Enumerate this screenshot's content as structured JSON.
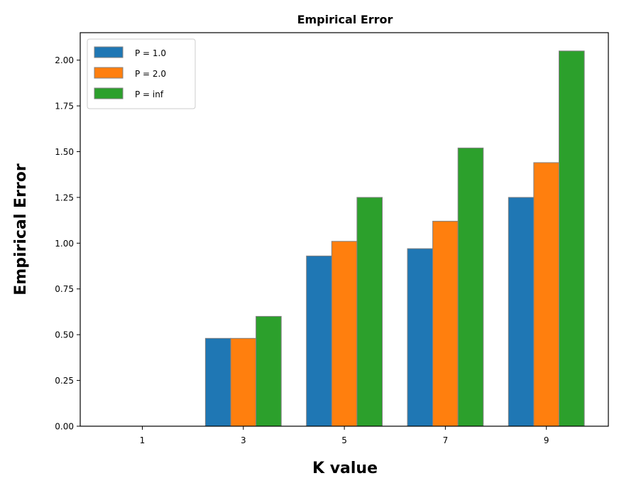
{
  "chart_data": {
    "type": "bar",
    "title": "Empirical Error",
    "xlabel": "K value",
    "ylabel": "Empirical Error",
    "categories": [
      "1",
      "3",
      "5",
      "7",
      "9"
    ],
    "series": [
      {
        "name": "P = 1.0",
        "color": "#1f77b4",
        "values": [
          0.0,
          0.48,
          0.93,
          0.97,
          1.25
        ]
      },
      {
        "name": "P = 2.0",
        "color": "#ff7f0e",
        "values": [
          0.0,
          0.48,
          1.01,
          1.12,
          1.44
        ]
      },
      {
        "name": "P = inf",
        "color": "#2ca02c",
        "values": [
          0.0,
          0.6,
          1.25,
          1.52,
          2.05
        ]
      }
    ],
    "ylim": [
      0,
      2.15
    ],
    "yticks": [
      "0.00",
      "0.25",
      "0.50",
      "0.75",
      "1.00",
      "1.25",
      "1.50",
      "1.75",
      "2.00"
    ],
    "bar_edge_color": "#808080",
    "grid": false,
    "legend_position": "top-left"
  }
}
